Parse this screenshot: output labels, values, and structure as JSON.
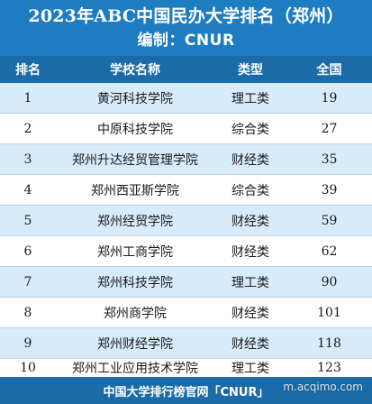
{
  "title": "2023年ABC中国民办大学排名（郑州）",
  "subtitle": "编制：CNUR",
  "columns": {
    "rank": "排名",
    "school": "学校名称",
    "type": "类型",
    "score": "全国"
  },
  "rows": [
    {
      "rank": "1",
      "school": "黄河科技学院",
      "type": "理工类",
      "score": "19"
    },
    {
      "rank": "2",
      "school": "中原科技学院",
      "type": "综合类",
      "score": "27"
    },
    {
      "rank": "3",
      "school": "郑州升达经贸管理学院",
      "type": "财经类",
      "score": "35"
    },
    {
      "rank": "4",
      "school": "郑州西亚斯学院",
      "type": "综合类",
      "score": "39"
    },
    {
      "rank": "5",
      "school": "郑州经贸学院",
      "type": "财经类",
      "score": "59"
    },
    {
      "rank": "6",
      "school": "郑州工商学院",
      "type": "财经类",
      "score": "62"
    },
    {
      "rank": "7",
      "school": "郑州科技学院",
      "type": "理工类",
      "score": "90"
    },
    {
      "rank": "8",
      "school": "郑州商学院",
      "type": "财经类",
      "score": "101"
    },
    {
      "rank": "9",
      "school": "郑州财经学院",
      "type": "财经类",
      "score": "118"
    },
    {
      "rank": "10",
      "school": "郑州工业应用技术学院",
      "type": "理工类",
      "score": "123"
    }
  ],
  "footer": "中国大学排行榜官网「CNUR」",
  "watermark": "m.acqimo.com",
  "colors": {
    "header_bg": "#1a6ba8",
    "title_bg": "#1e7cc1",
    "row_shade": "#d7ebfb"
  }
}
